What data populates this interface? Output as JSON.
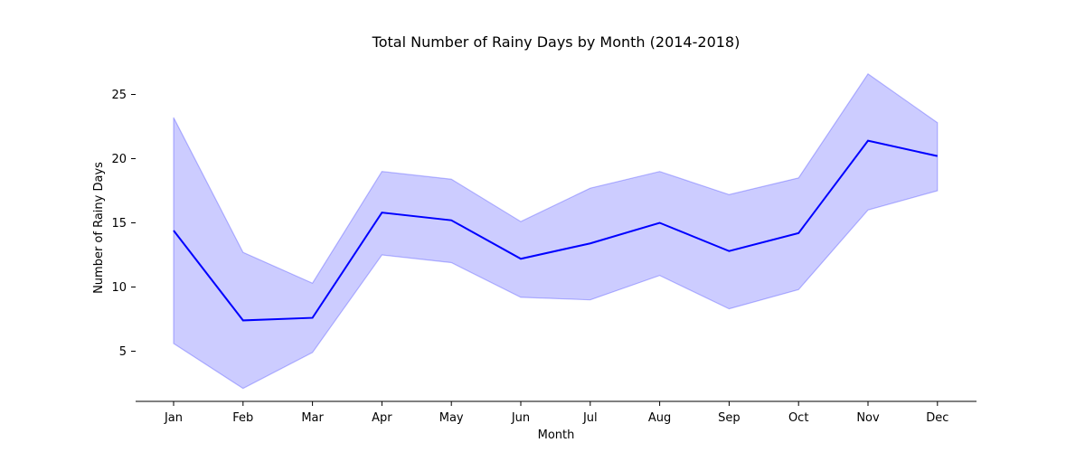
{
  "chart_data": {
    "type": "line",
    "title": "Total Number of Rainy Days by Month (2014-2018)",
    "xlabel": "Month",
    "ylabel": "Number of Rainy Days",
    "categories": [
      "Jan",
      "Feb",
      "Mar",
      "Apr",
      "May",
      "Jun",
      "Jul",
      "Aug",
      "Sep",
      "Oct",
      "Nov",
      "Dec"
    ],
    "series": [
      {
        "values": [
          14.4,
          7.4,
          7.6,
          15.8,
          15.2,
          12.2,
          13.4,
          15.0,
          12.8,
          14.2,
          21.4,
          20.2
        ],
        "band_upper": [
          23.2,
          12.7,
          10.3,
          19.0,
          18.4,
          15.1,
          17.7,
          19.0,
          17.2,
          18.5,
          26.6,
          22.8
        ],
        "band_lower": [
          5.6,
          2.1,
          4.9,
          12.5,
          11.9,
          9.2,
          9.0,
          10.9,
          8.3,
          9.8,
          16.0,
          17.5
        ]
      }
    ],
    "yticks": [
      5,
      10,
      15,
      20,
      25
    ],
    "ylim": [
      1,
      28
    ],
    "grid": false,
    "colors": {
      "line": "#0000ff",
      "band": "#0000ff",
      "ylabel": "#0000ff"
    }
  }
}
